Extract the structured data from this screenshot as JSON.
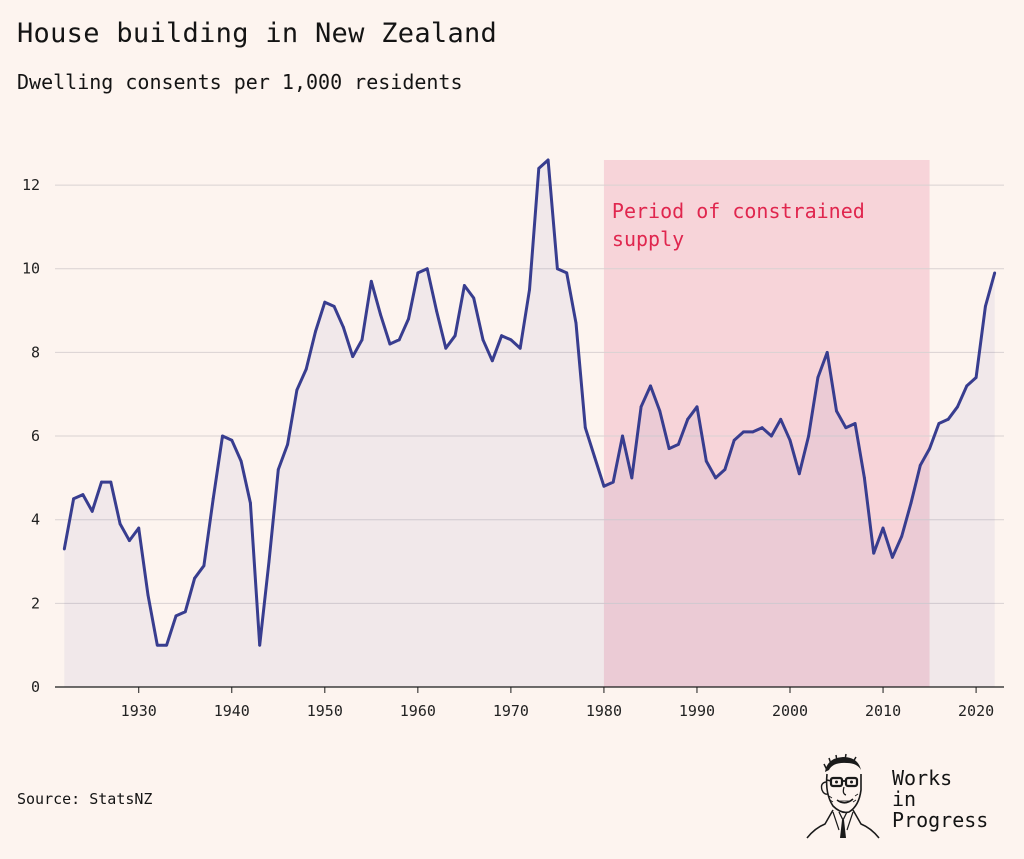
{
  "title": "House building in New Zealand",
  "subtitle": "Dwelling consents per 1,000 residents",
  "source": "Source: StatsNZ",
  "brand": {
    "line1": "Works",
    "line2": "in",
    "line3": "Progress"
  },
  "colors": {
    "background": "#fdf4ef",
    "line": "#383d8f",
    "area": "#f1ecf3",
    "highlight": "#f7d4d9",
    "annotation": "#e0264e",
    "grid": "#d9d2d2"
  },
  "chart_data": {
    "type": "area",
    "title": "House building in New Zealand",
    "subtitle": "Dwelling consents per 1,000 residents",
    "xlabel": "",
    "ylabel": "",
    "xlim": [
      1921,
      2023
    ],
    "ylim": [
      0,
      12.6
    ],
    "yticks": [
      0,
      2,
      4,
      6,
      8,
      10,
      12
    ],
    "xticks": [
      1930,
      1940,
      1950,
      1960,
      1970,
      1980,
      1990,
      2000,
      2010,
      2020
    ],
    "grid": "horizontal",
    "legend": "none",
    "highlight": {
      "from": 1980,
      "to": 2015,
      "label": [
        "Period of constrained",
        "supply"
      ]
    },
    "series": [
      {
        "x": [
          1922,
          1923,
          1924,
          1925,
          1926,
          1927,
          1928,
          1929,
          1930,
          1931,
          1932,
          1933,
          1934,
          1935,
          1936,
          1937,
          1938,
          1939,
          1940,
          1941,
          1942,
          1943,
          1944,
          1945,
          1946,
          1947,
          1948,
          1949,
          1950,
          1951,
          1952,
          1953,
          1954,
          1955,
          1956,
          1957,
          1958,
          1959,
          1960,
          1961,
          1962,
          1963,
          1964,
          1965,
          1966,
          1967,
          1968,
          1969,
          1970,
          1971,
          1972,
          1973,
          1974,
          1975,
          1976,
          1977,
          1978,
          1979,
          1980,
          1981,
          1982,
          1983,
          1984,
          1985,
          1986,
          1987,
          1988,
          1989,
          1990,
          1991,
          1992,
          1993,
          1994,
          1995,
          1996,
          1997,
          1998,
          1999,
          2000,
          2001,
          2002,
          2003,
          2004,
          2005,
          2006,
          2007,
          2008,
          2009,
          2010,
          2011,
          2012,
          2013,
          2014,
          2015,
          2016,
          2017,
          2018,
          2019,
          2020,
          2021,
          2022
        ],
        "values": [
          3.3,
          4.5,
          4.6,
          4.2,
          4.9,
          4.9,
          3.9,
          3.5,
          3.8,
          2.2,
          1.0,
          1.0,
          1.7,
          1.8,
          2.6,
          2.9,
          4.5,
          6.0,
          5.9,
          5.4,
          4.4,
          1.0,
          3.0,
          5.2,
          5.8,
          7.1,
          7.6,
          8.5,
          9.2,
          9.1,
          8.6,
          7.9,
          8.3,
          9.7,
          8.9,
          8.2,
          8.3,
          8.8,
          9.9,
          10.0,
          9.0,
          8.1,
          8.4,
          9.6,
          9.3,
          8.3,
          7.8,
          8.4,
          8.3,
          8.1,
          9.5,
          12.4,
          12.6,
          10.0,
          9.9,
          8.7,
          6.2,
          5.5,
          4.8,
          4.9,
          6.0,
          5.0,
          6.7,
          7.2,
          6.6,
          5.7,
          5.8,
          6.4,
          6.7,
          5.4,
          5.0,
          5.2,
          5.9,
          6.1,
          6.1,
          6.2,
          6.0,
          6.4,
          5.9,
          5.1,
          6.0,
          7.4,
          8.0,
          6.6,
          6.2,
          6.3,
          5.0,
          3.2,
          3.8,
          3.1,
          3.6,
          4.4,
          5.3,
          5.7,
          6.3,
          6.4,
          6.7,
          7.2,
          7.4,
          9.1,
          9.9
        ]
      }
    ]
  }
}
